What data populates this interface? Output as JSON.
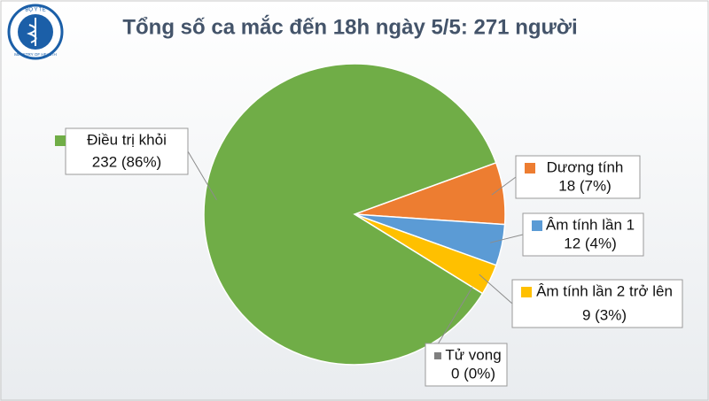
{
  "logo": {
    "top": "BỘ Y TẾ",
    "bottom": "MINISTRY OF HEALTH"
  },
  "chart_data": {
    "type": "pie",
    "title": "Tổng số ca mắc đến 18h ngày 5/5: 271 người",
    "categories": [
      "Dương tính",
      "Âm tính lần 1",
      "Âm tính lần 2 trở lên",
      "Tử vong",
      "Điều trị khỏi"
    ],
    "values": [
      18,
      12,
      9,
      0,
      232
    ],
    "value_labels": [
      "18 (7%)",
      "12 (4%)",
      "9 (3%)",
      "0 (0%)",
      "232 (86%)"
    ],
    "colors": [
      "#ed7d31",
      "#5b9bd5",
      "#ffc000",
      "#7f7f7f",
      "#70ad47"
    ]
  }
}
